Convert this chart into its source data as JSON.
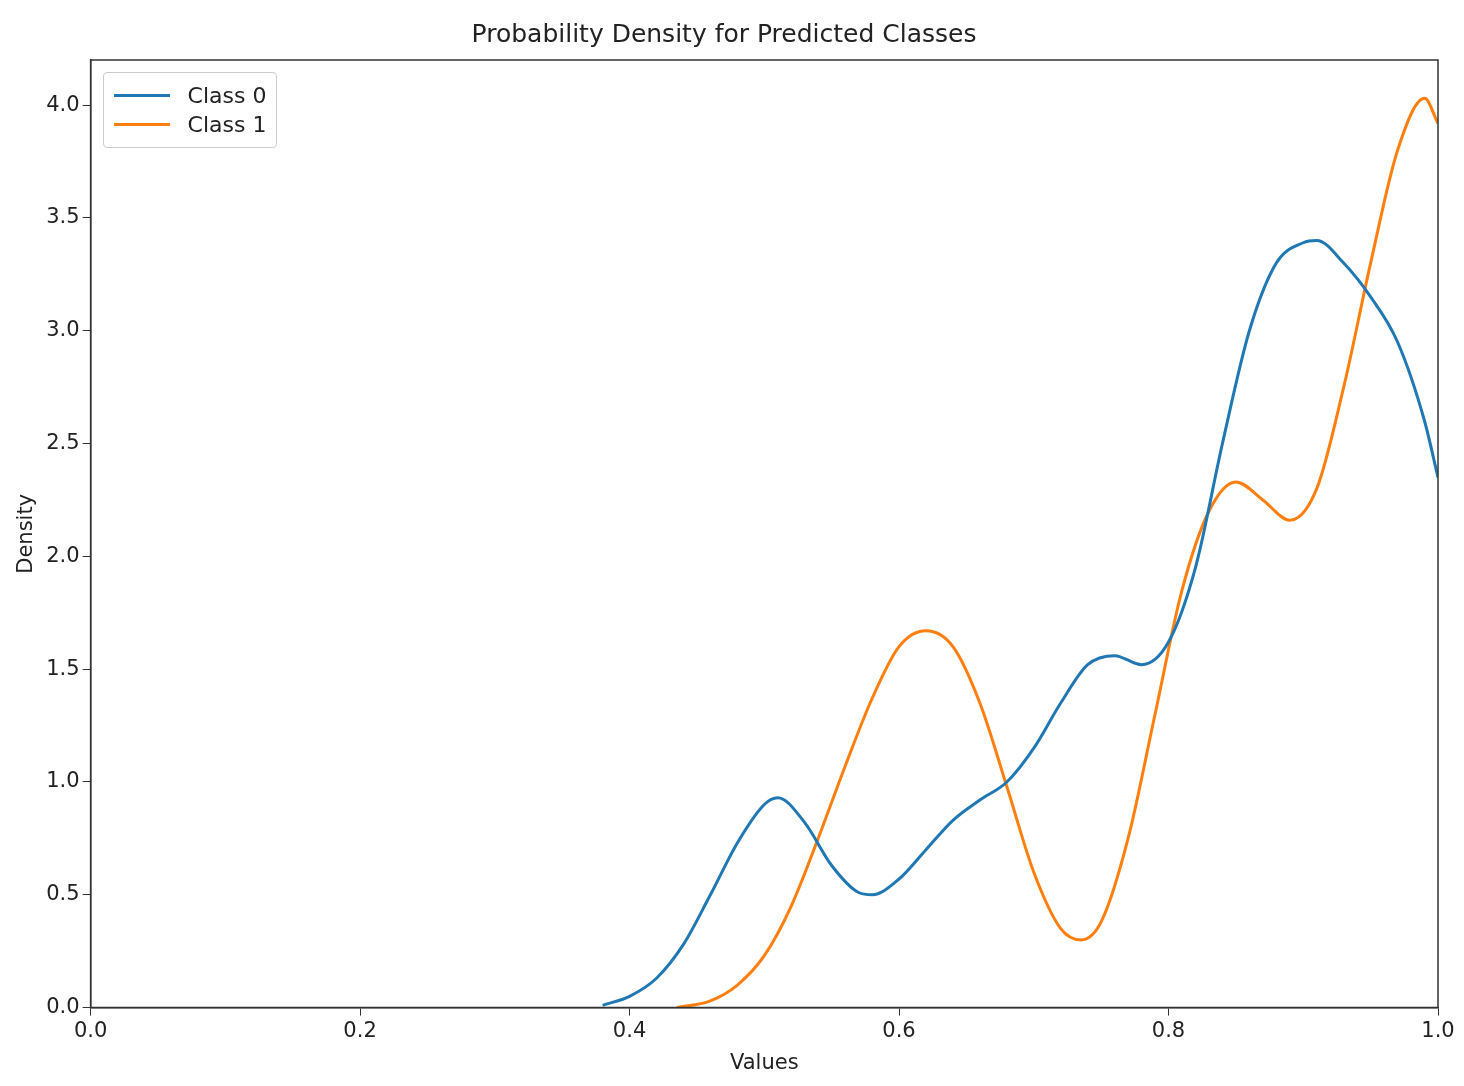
{
  "chart_data": {
    "type": "line",
    "title": "Probability Density for Predicted Classes",
    "xlabel": "Values",
    "ylabel": "Density",
    "xlim": [
      0,
      1
    ],
    "xticks": [
      {
        "value": 0,
        "label": "0.0"
      },
      0.2,
      0.4,
      0.6,
      0.8,
      {
        "value": 1,
        "label": "1.0"
      }
    ],
    "ylim": [
      0,
      4.2
    ],
    "yticks": [
      {
        "value": 0,
        "label": "0.0"
      },
      0.5,
      {
        "value": 1,
        "label": "1.0"
      },
      1.5,
      {
        "value": 2,
        "label": "2.0"
      },
      2.5,
      {
        "value": 3,
        "label": "3.0"
      },
      3.5,
      {
        "value": 4,
        "label": "4.0"
      }
    ],
    "grid": false,
    "legend": "top left",
    "marker": "none",
    "line_style": "solid",
    "series": [
      {
        "name": "Class 0",
        "color": "#1f77b4",
        "x": [
          0.38,
          0.4,
          0.42,
          0.44,
          0.46,
          0.48,
          0.5,
          0.51,
          0.53,
          0.55,
          0.57,
          0.58,
          0.6,
          0.62,
          0.64,
          0.66,
          0.68,
          0.7,
          0.72,
          0.74,
          0.76,
          0.78,
          0.8,
          0.82,
          0.84,
          0.86,
          0.88,
          0.9,
          0.91,
          0.93,
          0.95,
          0.97,
          0.99,
          1.0
        ],
        "values": [
          0.01,
          0.05,
          0.13,
          0.28,
          0.5,
          0.73,
          0.9,
          0.93,
          0.82,
          0.63,
          0.51,
          0.5,
          0.57,
          0.7,
          0.83,
          0.92,
          1.0,
          1.15,
          1.35,
          1.52,
          1.56,
          1.52,
          1.62,
          1.95,
          2.5,
          3.0,
          3.3,
          3.39,
          3.4,
          3.3,
          3.15,
          2.95,
          2.6,
          2.35
        ]
      },
      {
        "name": "Class 1",
        "color": "#ff7f0e",
        "x": [
          0.435,
          0.46,
          0.48,
          0.5,
          0.52,
          0.54,
          0.56,
          0.58,
          0.6,
          0.62,
          0.64,
          0.66,
          0.68,
          0.7,
          0.72,
          0.735,
          0.75,
          0.77,
          0.79,
          0.81,
          0.83,
          0.85,
          0.87,
          0.89,
          0.91,
          0.93,
          0.95,
          0.97,
          0.99,
          1.0
        ],
        "values": [
          0.0,
          0.03,
          0.1,
          0.23,
          0.45,
          0.75,
          1.07,
          1.37,
          1.6,
          1.67,
          1.6,
          1.35,
          0.98,
          0.6,
          0.35,
          0.3,
          0.38,
          0.75,
          1.3,
          1.85,
          2.2,
          2.33,
          2.25,
          2.16,
          2.3,
          2.75,
          3.3,
          3.8,
          4.03,
          3.92
        ]
      }
    ]
  }
}
